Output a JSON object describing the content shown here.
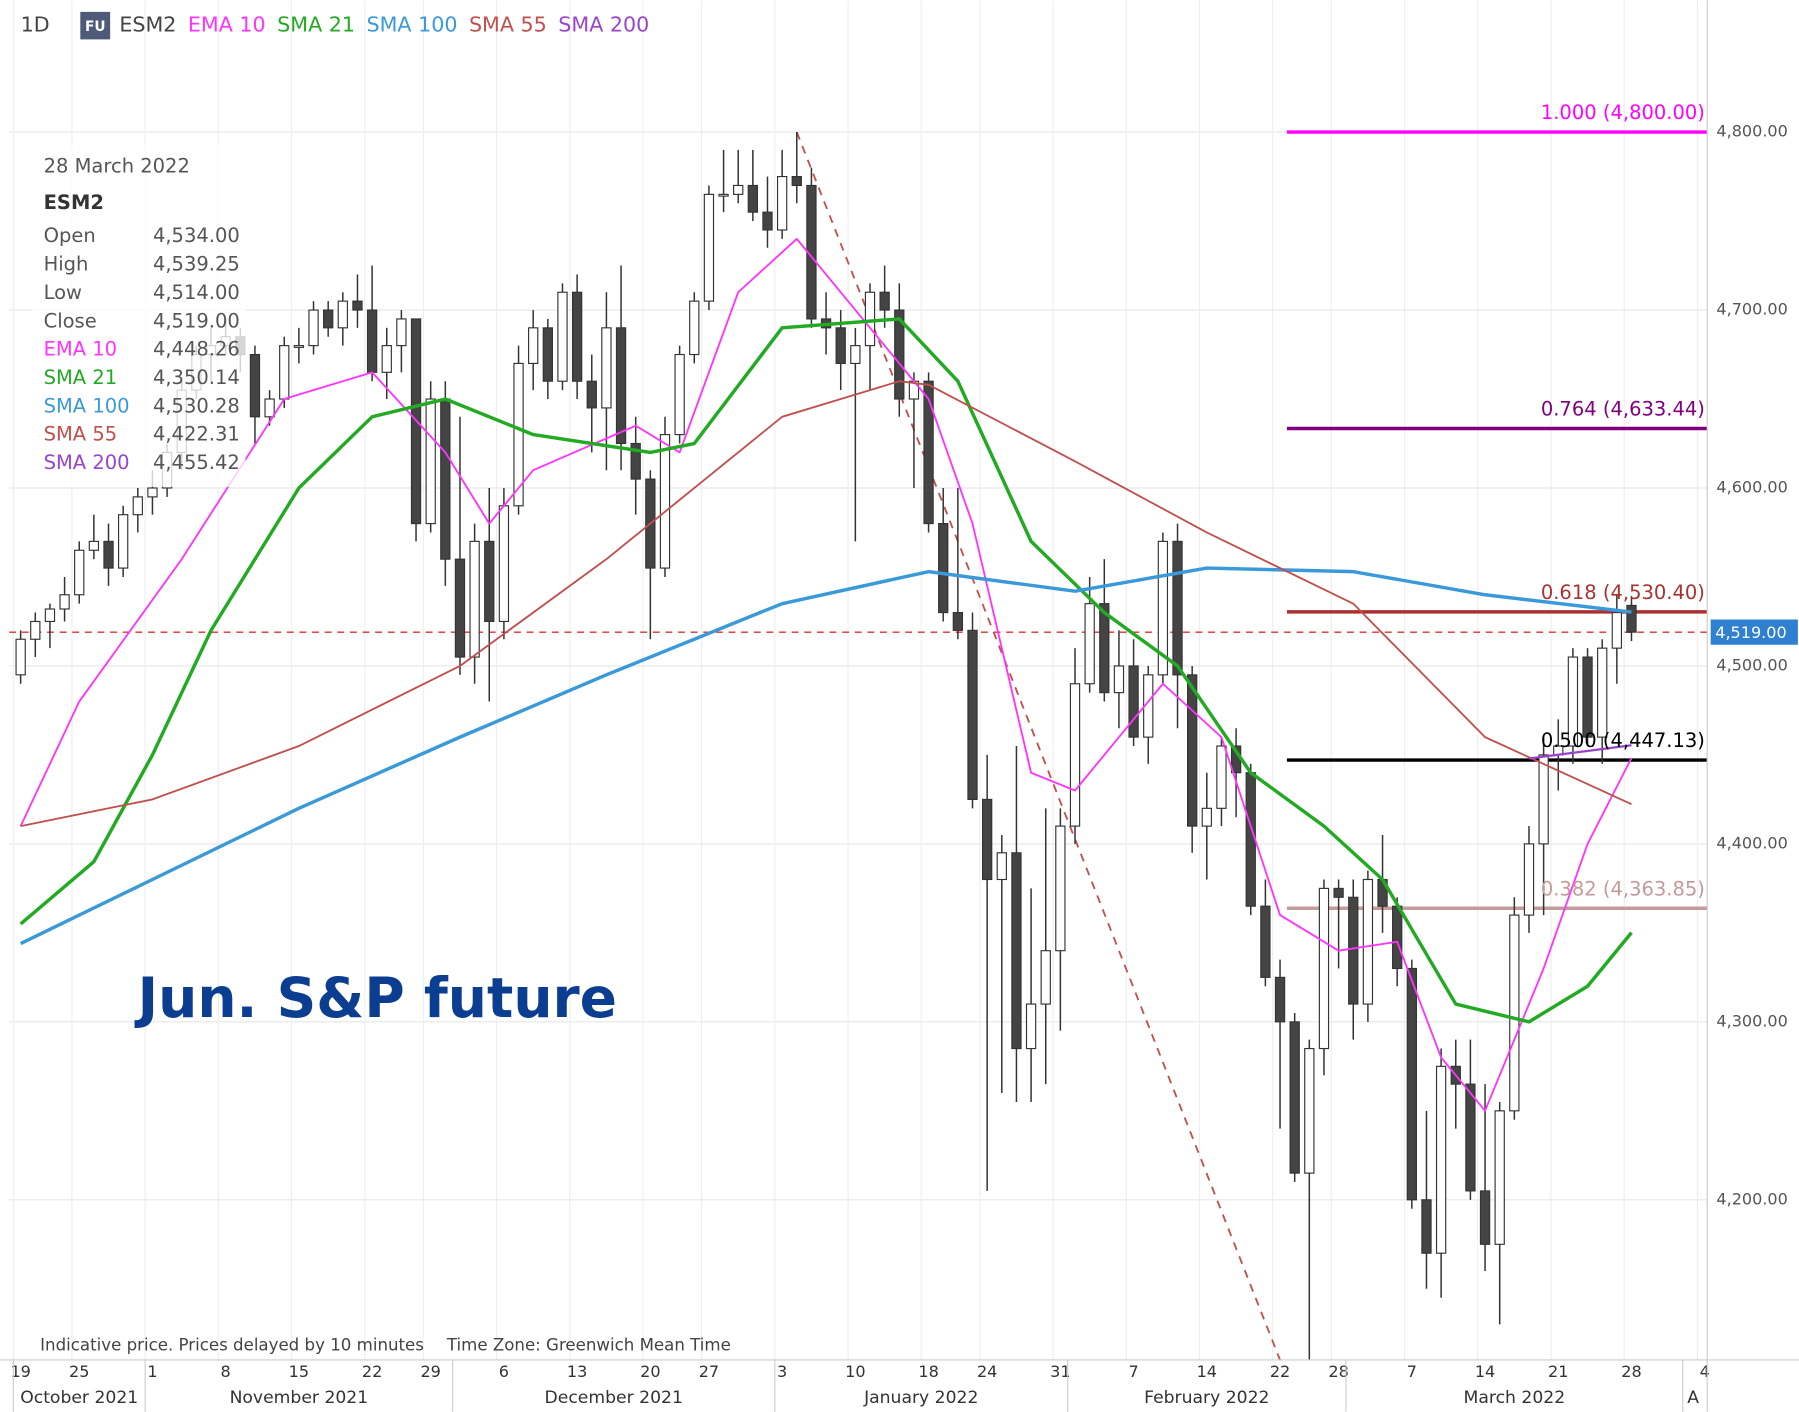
{
  "chart_data": {
    "type": "candlestick",
    "interval": "1D",
    "badge": "FU",
    "symbol": "ESM2",
    "annotation": "Jun. S&P future",
    "footer": [
      "Indicative price. Prices delayed by 10 minutes",
      "Time Zone: Greenwich Mean Time"
    ],
    "up_color": "#ffffff",
    "down_color": "#444444",
    "border_color": "#333333",
    "ylim": [
      4110,
      4874
    ],
    "yticks": [
      {
        "value": 4200,
        "label": "4,200.00"
      },
      {
        "value": 4300,
        "label": "4,300.00"
      },
      {
        "value": 4400,
        "label": "4,400.00"
      },
      {
        "value": 4500,
        "label": "4,500.00"
      },
      {
        "value": 4600,
        "label": "4,600.00"
      },
      {
        "value": 4700,
        "label": "4,700.00"
      },
      {
        "value": 4800,
        "label": "4,800.00"
      }
    ],
    "grid": true,
    "last_price": 4519,
    "last_price_label": "4,519.00",
    "last_price_color": "#2f80d0",
    "xticks": [
      {
        "value": "2021-10-19",
        "label": "19"
      },
      {
        "value": "2021-10-25",
        "label": "25"
      },
      {
        "value": "2021-11-01",
        "label": "1"
      },
      {
        "value": "2021-11-08",
        "label": "8"
      },
      {
        "value": "2021-11-15",
        "label": "15"
      },
      {
        "value": "2021-11-22",
        "label": "22"
      },
      {
        "value": "2021-11-29",
        "label": "29"
      },
      {
        "value": "2021-12-06",
        "label": "6"
      },
      {
        "value": "2021-12-13",
        "label": "13"
      },
      {
        "value": "2021-12-20",
        "label": "20"
      },
      {
        "value": "2021-12-27",
        "label": "27"
      },
      {
        "value": "2022-01-03",
        "label": "3"
      },
      {
        "value": "2022-01-10",
        "label": "10"
      },
      {
        "value": "2022-01-18",
        "label": "18"
      },
      {
        "value": "2022-01-24",
        "label": "24"
      },
      {
        "value": "2022-01-31",
        "label": "31"
      },
      {
        "value": "2022-02-07",
        "label": "7"
      },
      {
        "value": "2022-02-14",
        "label": "14"
      },
      {
        "value": "2022-02-22",
        "label": "22"
      },
      {
        "value": "2022-02-28",
        "label": "28"
      },
      {
        "value": "2022-03-07",
        "label": "7"
      },
      {
        "value": "2022-03-14",
        "label": "14"
      },
      {
        "value": "2022-03-21",
        "label": "21"
      },
      {
        "value": "2022-03-28",
        "label": "28"
      },
      {
        "value": "2022-04-04",
        "label": "4"
      }
    ],
    "months": [
      {
        "value": "2021-10",
        "label": "October 2021"
      },
      {
        "value": "2021-11",
        "label": "November 2021"
      },
      {
        "value": "2021-12",
        "label": "December 2021"
      },
      {
        "value": "2022-01",
        "label": "January 2022"
      },
      {
        "value": "2022-02",
        "label": "February 2022"
      },
      {
        "value": "2022-03",
        "label": "March 2022"
      },
      {
        "value": "2022-04",
        "label": "A"
      }
    ],
    "x": [
      "2021-10-19",
      "2021-10-20",
      "2021-10-21",
      "2021-10-22",
      "2021-10-25",
      "2021-10-26",
      "2021-10-27",
      "2021-10-28",
      "2021-10-29",
      "2021-11-01",
      "2021-11-02",
      "2021-11-03",
      "2021-11-04",
      "2021-11-05",
      "2021-11-08",
      "2021-11-09",
      "2021-11-10",
      "2021-11-11",
      "2021-11-12",
      "2021-11-15",
      "2021-11-16",
      "2021-11-17",
      "2021-11-18",
      "2021-11-19",
      "2021-11-22",
      "2021-11-23",
      "2021-11-24",
      "2021-11-26",
      "2021-11-29",
      "2021-11-30",
      "2021-12-01",
      "2021-12-02",
      "2021-12-03",
      "2021-12-06",
      "2021-12-07",
      "2021-12-08",
      "2021-12-09",
      "2021-12-10",
      "2021-12-13",
      "2021-12-14",
      "2021-12-15",
      "2021-12-16",
      "2021-12-17",
      "2021-12-20",
      "2021-12-21",
      "2021-12-22",
      "2021-12-23",
      "2021-12-27",
      "2021-12-28",
      "2021-12-29",
      "2021-12-30",
      "2021-12-31",
      "2022-01-03",
      "2022-01-04",
      "2022-01-05",
      "2022-01-06",
      "2022-01-07",
      "2022-01-10",
      "2022-01-11",
      "2022-01-12",
      "2022-01-13",
      "2022-01-14",
      "2022-01-18",
      "2022-01-19",
      "2022-01-20",
      "2022-01-21",
      "2022-01-24",
      "2022-01-25",
      "2022-01-26",
      "2022-01-27",
      "2022-01-28",
      "2022-01-31",
      "2022-02-01",
      "2022-02-02",
      "2022-02-03",
      "2022-02-04",
      "2022-02-07",
      "2022-02-08",
      "2022-02-09",
      "2022-02-10",
      "2022-02-11",
      "2022-02-14",
      "2022-02-15",
      "2022-02-16",
      "2022-02-17",
      "2022-02-18",
      "2022-02-22",
      "2022-02-23",
      "2022-02-24",
      "2022-02-25",
      "2022-02-28",
      "2022-03-01",
      "2022-03-02",
      "2022-03-03",
      "2022-03-04",
      "2022-03-07",
      "2022-03-08",
      "2022-03-09",
      "2022-03-10",
      "2022-03-11",
      "2022-03-14",
      "2022-03-15",
      "2022-03-16",
      "2022-03-17",
      "2022-03-18",
      "2022-03-21",
      "2022-03-22",
      "2022-03-23",
      "2022-03-24",
      "2022-03-25",
      "2022-03-28"
    ],
    "open": [
      4495,
      4515,
      4525,
      4532,
      4540,
      4565,
      4570,
      4555,
      4585,
      4595,
      4600,
      4620,
      4655,
      4675,
      4680,
      4685,
      4675,
      4640,
      4650,
      4680,
      4680,
      4700,
      4690,
      4705,
      4700,
      4665,
      4680,
      4695,
      4580,
      4650,
      4560,
      4505,
      4570,
      4525,
      4590,
      4670,
      4690,
      4660,
      4710,
      4660,
      4645,
      4690,
      4625,
      4605,
      4555,
      4630,
      4675,
      4705,
      4765,
      4765,
      4770,
      4755,
      4745,
      4775,
      4770,
      4695,
      4690,
      4670,
      4680,
      4710,
      4700,
      4650,
      4660,
      4580,
      4530,
      4520,
      4425,
      4380,
      4395,
      4285,
      4310,
      4340,
      4410,
      4490,
      4535,
      4485,
      4500,
      4460,
      4495,
      4570,
      4495,
      4410,
      4420,
      4455,
      4440,
      4365,
      4325,
      4300,
      4215,
      4285,
      4375,
      4370,
      4310,
      4380,
      4365,
      4330,
      4200,
      4170,
      4275,
      4265,
      4205,
      4175,
      4250,
      4360,
      4400,
      4450,
      4455,
      4505,
      4460,
      4510,
      4534
    ],
    "high": [
      4520,
      4530,
      4535,
      4550,
      4570,
      4585,
      4580,
      4590,
      4600,
      4610,
      4625,
      4660,
      4680,
      4690,
      4695,
      4690,
      4680,
      4655,
      4685,
      4690,
      4705,
      4705,
      4710,
      4720,
      4725,
      4690,
      4700,
      4695,
      4660,
      4660,
      4640,
      4580,
      4600,
      4600,
      4680,
      4700,
      4695,
      4715,
      4720,
      4675,
      4710,
      4725,
      4640,
      4610,
      4640,
      4680,
      4710,
      4770,
      4790,
      4790,
      4790,
      4775,
      4790,
      4800,
      4780,
      4710,
      4700,
      4690,
      4715,
      4725,
      4715,
      4665,
      4665,
      4600,
      4600,
      4530,
      4450,
      4405,
      4455,
      4375,
      4420,
      4420,
      4510,
      4550,
      4560,
      4520,
      4515,
      4500,
      4575,
      4580,
      4500,
      4440,
      4460,
      4465,
      4445,
      4380,
      4335,
      4305,
      4290,
      4380,
      4380,
      4380,
      4385,
      4405,
      4370,
      4335,
      4250,
      4285,
      4290,
      4290,
      4265,
      4255,
      4370,
      4410,
      4460,
      4470,
      4510,
      4510,
      4515,
      4540,
      4539.25
    ],
    "low": [
      4490,
      4505,
      4510,
      4525,
      4535,
      4560,
      4545,
      4550,
      4575,
      4585,
      4595,
      4610,
      4650,
      4660,
      4675,
      4665,
      4625,
      4635,
      4645,
      4670,
      4675,
      4685,
      4680,
      4690,
      4660,
      4650,
      4665,
      4570,
      4575,
      4545,
      4495,
      4490,
      4480,
      4515,
      4585,
      4655,
      4650,
      4655,
      4650,
      4620,
      4610,
      4610,
      4585,
      4515,
      4550,
      4625,
      4670,
      4700,
      4755,
      4760,
      4750,
      4735,
      4740,
      4760,
      4690,
      4675,
      4655,
      4570,
      4655,
      4690,
      4640,
      4600,
      4575,
      4525,
      4515,
      4420,
      4205,
      4260,
      4255,
      4255,
      4265,
      4295,
      4400,
      4485,
      4480,
      4465,
      4455,
      4445,
      4490,
      4465,
      4395,
      4380,
      4410,
      4415,
      4360,
      4320,
      4240,
      4210,
      4110,
      4270,
      4330,
      4290,
      4300,
      4350,
      4320,
      4195,
      4150,
      4145,
      4240,
      4200,
      4160,
      4130,
      4245,
      4350,
      4360,
      4430,
      4445,
      4455,
      4445,
      4490,
      4514
    ],
    "close": [
      4515,
      4525,
      4532,
      4540,
      4565,
      4570,
      4555,
      4585,
      4595,
      4600,
      4620,
      4655,
      4675,
      4680,
      4685,
      4675,
      4640,
      4650,
      4680,
      4680,
      4700,
      4690,
      4705,
      4700,
      4665,
      4680,
      4695,
      4580,
      4650,
      4560,
      4505,
      4570,
      4525,
      4590,
      4670,
      4690,
      4660,
      4710,
      4660,
      4645,
      4690,
      4625,
      4605,
      4555,
      4630,
      4675,
      4705,
      4765,
      4765,
      4770,
      4755,
      4745,
      4775,
      4770,
      4695,
      4690,
      4670,
      4680,
      4710,
      4700,
      4650,
      4660,
      4580,
      4530,
      4520,
      4425,
      4380,
      4395,
      4285,
      4310,
      4340,
      4410,
      4490,
      4535,
      4485,
      4500,
      4460,
      4495,
      4570,
      4495,
      4410,
      4420,
      4455,
      4440,
      4365,
      4325,
      4300,
      4215,
      4285,
      4375,
      4370,
      4310,
      4380,
      4365,
      4330,
      4200,
      4170,
      4275,
      4265,
      4205,
      4175,
      4250,
      4360,
      4400,
      4450,
      4455,
      4505,
      4460,
      4510,
      4530,
      4519
    ],
    "series": [
      {
        "name": "EMA 10",
        "color": "#ff33ff",
        "width": 1.6,
        "x": [
          "2021-10-19",
          "2021-10-25",
          "2021-11-03",
          "2021-11-12",
          "2021-11-22",
          "2021-11-30",
          "2021-12-03",
          "2021-12-08",
          "2021-12-17",
          "2021-12-22",
          "2021-12-29",
          "2022-01-04",
          "2022-01-11",
          "2022-01-18",
          "2022-01-21",
          "2022-01-27",
          "2022-02-01",
          "2022-02-09",
          "2022-02-15",
          "2022-02-22",
          "2022-02-28",
          "2022-03-04",
          "2022-03-09",
          "2022-03-14",
          "2022-03-18",
          "2022-03-23",
          "2022-03-28"
        ],
        "values": [
          4410,
          4480,
          4560,
          4650,
          4665,
          4620,
          4580,
          4610,
          4635,
          4620,
          4710,
          4740,
          4690,
          4650,
          4580,
          4440,
          4430,
          4490,
          4460,
          4360,
          4340,
          4345,
          4280,
          4250,
          4330,
          4400,
          4448.26
        ]
      },
      {
        "name": "SMA 21",
        "color": "#22aa22",
        "width": 3,
        "x": [
          "2021-10-19",
          "2021-10-26",
          "2021-11-01",
          "2021-11-05",
          "2021-11-15",
          "2021-11-22",
          "2021-11-30",
          "2021-12-08",
          "2021-12-20",
          "2021-12-23",
          "2022-01-03",
          "2022-01-13",
          "2022-01-20",
          "2022-01-27",
          "2022-02-03",
          "2022-02-10",
          "2022-02-17",
          "2022-02-25",
          "2022-03-03",
          "2022-03-10",
          "2022-03-17",
          "2022-03-23",
          "2022-03-28"
        ],
        "values": [
          4355,
          4390,
          4450,
          4520,
          4600,
          4640,
          4650,
          4630,
          4620,
          4625,
          4690,
          4695,
          4660,
          4570,
          4530,
          4500,
          4440,
          4410,
          4380,
          4310,
          4300,
          4320,
          4350.14
        ]
      },
      {
        "name": "SMA 100",
        "color": "#3a9ad9",
        "width": 3,
        "x": [
          "2021-10-19",
          "2021-11-01",
          "2021-11-15",
          "2021-12-01",
          "2021-12-15",
          "2022-01-03",
          "2022-01-18",
          "2022-02-01",
          "2022-02-14",
          "2022-03-01",
          "2022-03-14",
          "2022-03-28"
        ],
        "values": [
          4344,
          4380,
          4420,
          4460,
          4495,
          4535,
          4553,
          4542,
          4555,
          4553,
          4540,
          4530.28
        ]
      },
      {
        "name": "SMA 55",
        "color": "#c0504d",
        "width": 1.6,
        "x": [
          "2021-10-19",
          "2021-11-01",
          "2021-11-15",
          "2021-12-01",
          "2021-12-15",
          "2022-01-03",
          "2022-01-13",
          "2022-01-18",
          "2022-02-01",
          "2022-02-14",
          "2022-03-01",
          "2022-03-14",
          "2022-03-28"
        ],
        "values": [
          4410,
          4425,
          4455,
          4500,
          4560,
          4640,
          4660,
          4658,
          4615,
          4575,
          4535,
          4460,
          4422.31
        ]
      },
      {
        "name": "SMA 200",
        "color": "#9944cc",
        "width": 2,
        "x": [
          "2022-03-17",
          "2022-03-28"
        ],
        "values": [
          4448,
          4455.42
        ]
      }
    ],
    "info_panel": {
      "date": "28 March 2022",
      "symbol": "ESM2",
      "rows": [
        [
          "Open",
          "4,534.00"
        ],
        [
          "High",
          "4,539.25"
        ],
        [
          "Low",
          "4,514.00"
        ],
        [
          "Close",
          "4,519.00"
        ]
      ],
      "series_values": [
        "4,448.26",
        "4,350.14",
        "4,530.28",
        "4,422.31",
        "4,455.42"
      ]
    },
    "fib_start": "2022-02-22",
    "fib_levels": [
      {
        "value": 4800,
        "label": "1.000 (4,800.00)",
        "color": "#ff00ff"
      },
      {
        "value": 4633.44,
        "label": "0.764 (4,633.44)",
        "color": "#800080"
      },
      {
        "value": 4530.4,
        "label": "0.618 (4,530.40)",
        "color": "#a83232"
      },
      {
        "value": 4447.13,
        "label": "0.500 (4,447.13)",
        "color": "#000000"
      },
      {
        "value": 4363.85,
        "label": "0.382 (4,363.85)",
        "color": "#c49a9a"
      }
    ],
    "trendline": {
      "x": [
        "2022-01-04",
        "2022-02-22"
      ],
      "values": [
        4800,
        4110
      ],
      "color": "#c0504d"
    }
  }
}
